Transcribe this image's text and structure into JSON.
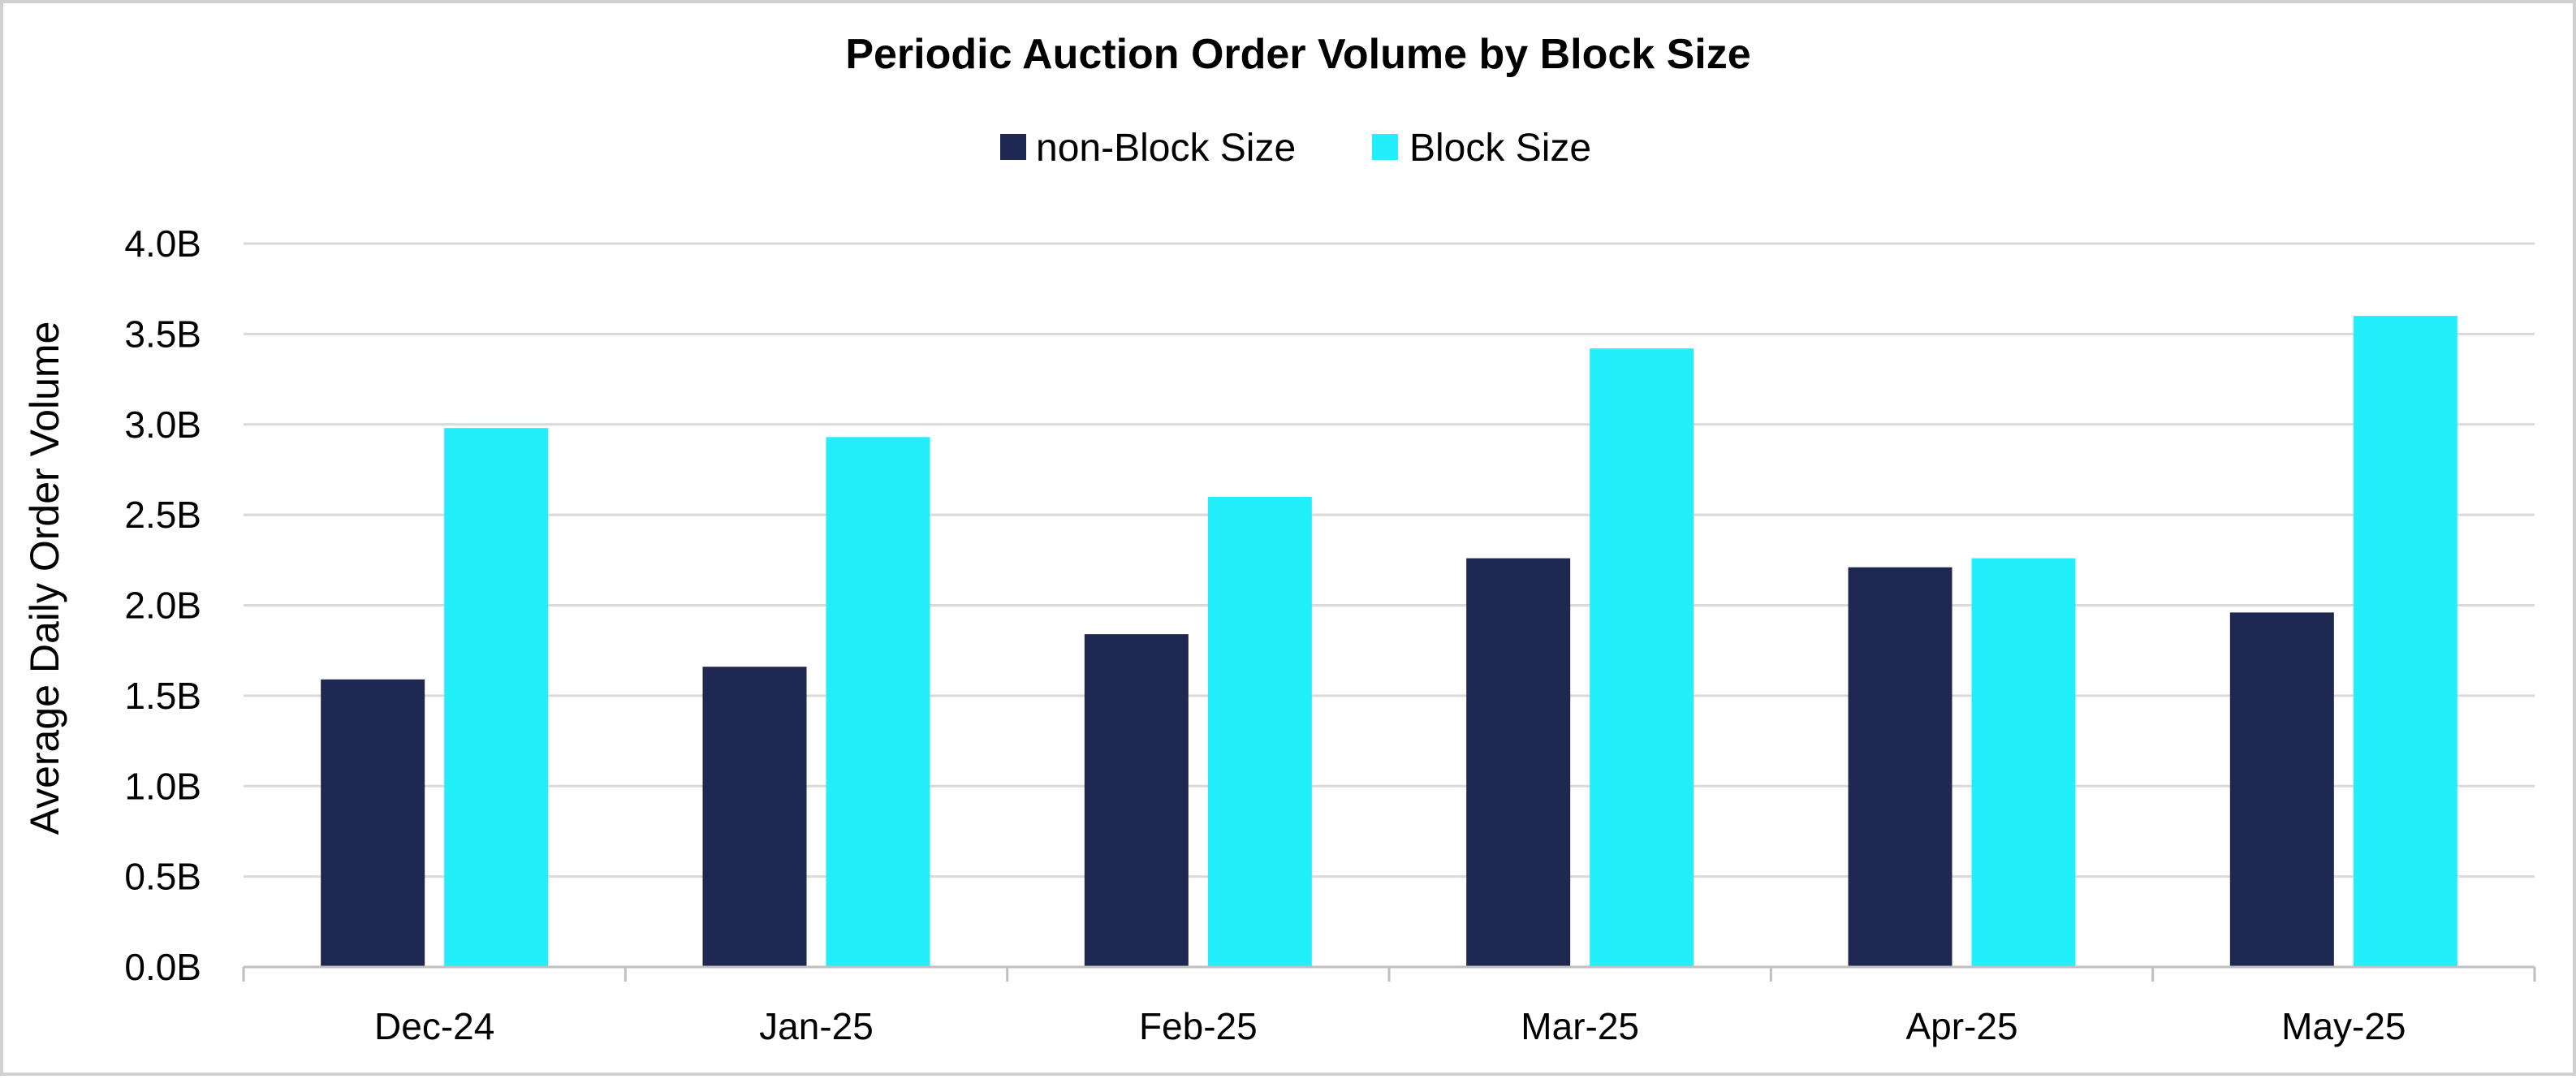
{
  "chart_data": {
    "type": "bar",
    "title": "Periodic Auction Order Volume by Block Size",
    "xlabel": "",
    "ylabel": "Average Daily Order  Volume",
    "categories": [
      "Dec-24",
      "Jan-25",
      "Feb-25",
      "Mar-25",
      "Apr-25",
      "May-25"
    ],
    "series": [
      {
        "name": "non-Block Size",
        "color": "#1f2850",
        "values": [
          1.59,
          1.66,
          1.84,
          2.26,
          2.21,
          1.96
        ]
      },
      {
        "name": "Block Size",
        "color": "#22eefc",
        "values": [
          2.98,
          2.93,
          2.6,
          3.42,
          2.26,
          3.6
        ]
      }
    ],
    "ylim": [
      0,
      4.0
    ],
    "yticks": [
      "0.0B",
      "0.5B",
      "1.0B",
      "1.5B",
      "2.0B",
      "2.5B",
      "3.0B",
      "3.5B",
      "4.0B"
    ],
    "y_unit": "B",
    "grid": true,
    "legend_position": "top-center"
  }
}
